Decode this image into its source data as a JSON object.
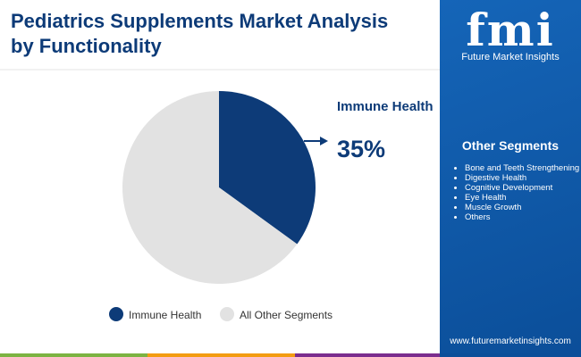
{
  "chart_data": {
    "type": "pie",
    "title": "Pediatrics Supplements Market Analysis by Functionality",
    "categories": [
      "Immune Health",
      "All Other Segments"
    ],
    "values": [
      35,
      65
    ],
    "value_labels": [
      "35%",
      null
    ],
    "colors": [
      "#0d3b78",
      "#e2e2e2"
    ]
  },
  "sidebar": {
    "logo": "fmi",
    "brand": "Future Market Insights",
    "heading": "Other Segments",
    "items": [
      "Bone and Teeth Strengthening",
      "Digestive Health",
      "Cognitive Development",
      "Eye Health",
      "Muscle Growth",
      "Others"
    ],
    "website": "www.futuremarketinsights.com"
  }
}
